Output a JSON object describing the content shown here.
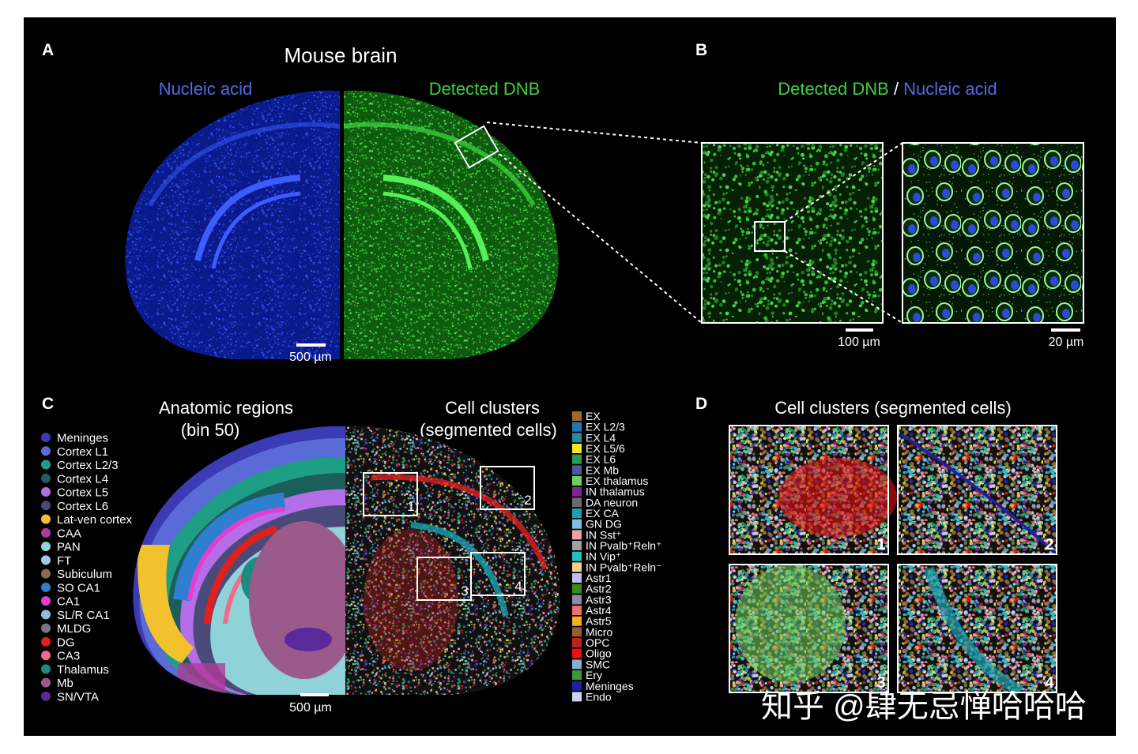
{
  "panel_a": {
    "label": "A",
    "title": "Mouse brain",
    "left_title": "Nucleic acid",
    "right_title": "Detected DNB",
    "scale_bar": "500 µm"
  },
  "panel_b": {
    "label": "B",
    "title_green": "Detected DNB",
    "separator": " / ",
    "title_blue": "Nucleic acid",
    "scale_bar_left": "100 µm",
    "scale_bar_right": "20 µm"
  },
  "panel_c": {
    "label": "C",
    "left_title": "Anatomic regions",
    "left_subtitle": "(bin 50)",
    "right_title": "Cell clusters",
    "right_subtitle": "(segmented cells)",
    "scale_bar": "500 µm",
    "box_labels": [
      "1",
      "2",
      "3",
      "4"
    ],
    "regions": [
      {
        "name": "Meninges",
        "color": "#3b3bb5"
      },
      {
        "name": "Cortex L1",
        "color": "#5a6ad6"
      },
      {
        "name": "Cortex L2/3",
        "color": "#1f9e86"
      },
      {
        "name": "Cortex L4",
        "color": "#1b5e5a"
      },
      {
        "name": "Cortex L5",
        "color": "#b36ee8"
      },
      {
        "name": "Cortex L6",
        "color": "#4a4a7a"
      },
      {
        "name": "Lat-ven cortex",
        "color": "#f2c12e"
      },
      {
        "name": "CAA",
        "color": "#b03a9a"
      },
      {
        "name": "PAN",
        "color": "#8fd3d8"
      },
      {
        "name": "FT",
        "color": "#9fc7f0"
      },
      {
        "name": "Subiculum",
        "color": "#8a6a4a"
      },
      {
        "name": "SO CA1",
        "color": "#2f7fd1"
      },
      {
        "name": "CA1",
        "color": "#e23fd0"
      },
      {
        "name": "SL/R CA1",
        "color": "#8fbfd8"
      },
      {
        "name": "MLDG",
        "color": "#777788"
      },
      {
        "name": "DG",
        "color": "#e01f1f"
      },
      {
        "name": "CA3",
        "color": "#f06a8a"
      },
      {
        "name": "Thalamus",
        "color": "#1f8a82"
      },
      {
        "name": "Mb",
        "color": "#9a5a8a"
      },
      {
        "name": "SN/VTA",
        "color": "#5a2a9a"
      }
    ],
    "clusters": [
      {
        "name": "EX",
        "color": "#a0692a"
      },
      {
        "name": "EX L2/3",
        "color": "#1f77b4"
      },
      {
        "name": "EX L4",
        "color": "#2a8aa0"
      },
      {
        "name": "EX L5/6",
        "color": "#f5e52a"
      },
      {
        "name": "EX L6",
        "color": "#2a9a5a"
      },
      {
        "name": "EX Mb",
        "color": "#4a5aa0"
      },
      {
        "name": "EX thalamus",
        "color": "#6ccf5a"
      },
      {
        "name": "IN thalamus",
        "color": "#7a2a8a"
      },
      {
        "name": "DA neuron",
        "color": "#6a6a6a"
      },
      {
        "name": "EX CA",
        "color": "#1aa0b0"
      },
      {
        "name": "GN DG",
        "color": "#7ac0e0"
      },
      {
        "name": "IN Sst⁺",
        "color": "#f0a0a0"
      },
      {
        "name": "IN Pvalb⁺Reln⁺",
        "color": "#a0a0a0"
      },
      {
        "name": "IN Vip⁺",
        "color": "#20c0c0"
      },
      {
        "name": "IN Pvalb⁺Reln⁻",
        "color": "#f0d090"
      },
      {
        "name": "Astr1",
        "color": "#c0c0f0"
      },
      {
        "name": "Astr2",
        "color": "#3a8a1a"
      },
      {
        "name": "Astr3",
        "color": "#8a8aa0"
      },
      {
        "name": "Astr4",
        "color": "#f07070"
      },
      {
        "name": "Astr5",
        "color": "#f0b020"
      },
      {
        "name": "Micro",
        "color": "#9a5a2a"
      },
      {
        "name": "OPC",
        "color": "#c02020"
      },
      {
        "name": "Oligo",
        "color": "#f01010"
      },
      {
        "name": "SMC",
        "color": "#8ab0d0"
      },
      {
        "name": "Ery",
        "color": "#3a9a3a"
      },
      {
        "name": "Meninges",
        "color": "#2020a0"
      },
      {
        "name": "Endo",
        "color": "#d0d0f0"
      }
    ]
  },
  "panel_d": {
    "label": "D",
    "title": "Cell clusters (segmented cells)",
    "inset_labels": [
      "1",
      "2",
      "3",
      "4"
    ]
  },
  "watermark": "知乎 @肆无忌惮哈哈哈"
}
